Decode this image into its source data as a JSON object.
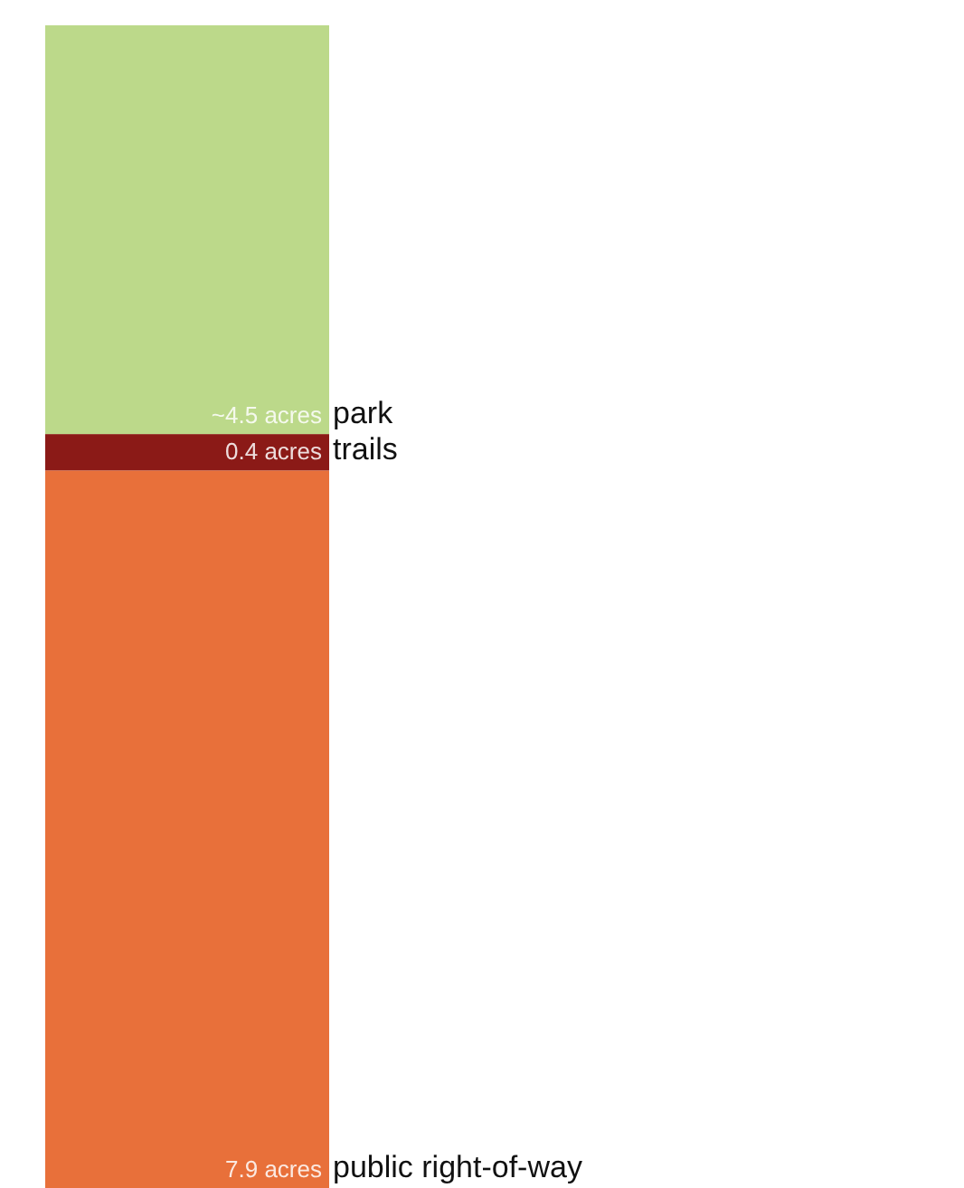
{
  "chart_data": {
    "type": "bar",
    "stacked": true,
    "categories": [
      null
    ],
    "series": [
      {
        "name": "public right-of-way",
        "color": "#e8703a",
        "values": [
          7.9
        ],
        "value_labels": [
          "7.9 acres"
        ]
      },
      {
        "name": "trails",
        "color": "#8b1a17",
        "values": [
          0.4
        ],
        "value_labels": [
          "0.4 acres"
        ]
      },
      {
        "name": "park",
        "color": "#bcd98a",
        "values": [
          4.5
        ],
        "value_labels": [
          "~4.5 acres"
        ]
      }
    ]
  }
}
